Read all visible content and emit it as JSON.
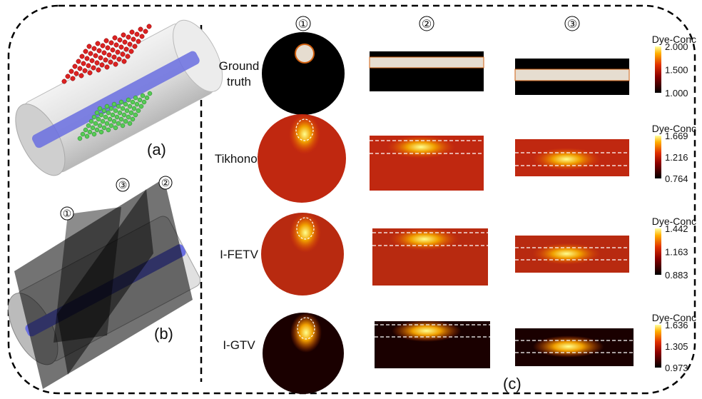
{
  "panel_a": {
    "label": "(a)"
  },
  "panel_b": {
    "label": "(b)",
    "planes": [
      "①",
      "②",
      "③"
    ]
  },
  "panel_c": {
    "label": "(c)",
    "columns": [
      "①",
      "②",
      "③"
    ],
    "rows": [
      {
        "label": [
          "Ground",
          "truth"
        ],
        "colorbar": {
          "title": "Dye-Conc",
          "ticks": [
            "2.000",
            "1.500",
            "1.000"
          ]
        }
      },
      {
        "label": [
          "Tikhonov"
        ],
        "colorbar": {
          "title": "Dye-Conc",
          "ticks": [
            "1.669",
            "1.216",
            "0.764"
          ]
        }
      },
      {
        "label": [
          "I-FETV"
        ],
        "colorbar": {
          "title": "Dye-Conc",
          "ticks": [
            "1.442",
            "1.163",
            "0.883"
          ]
        }
      },
      {
        "label": [
          "I-GTV"
        ],
        "colorbar": {
          "title": "Dye-Conc",
          "ticks": [
            "1.636",
            "1.305",
            "0.973"
          ]
        }
      }
    ]
  }
}
